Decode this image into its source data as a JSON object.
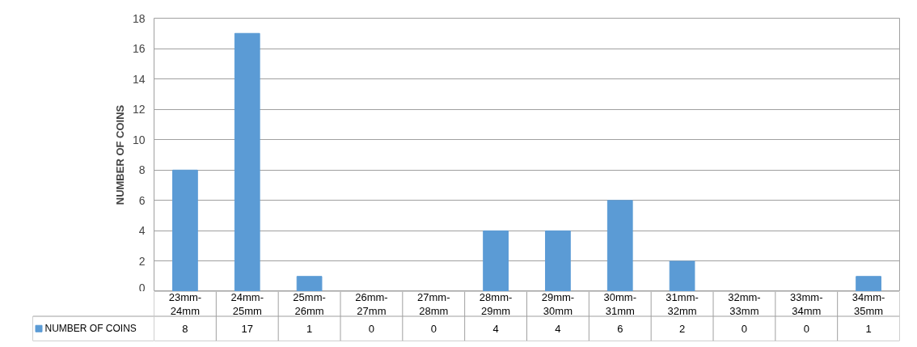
{
  "chart_data": {
    "type": "bar",
    "ylabel": "NUMBER OF COINS",
    "categories": [
      "23mm-24mm",
      "24mm-25mm",
      "25mm-26mm",
      "26mm-27mm",
      "27mm-28mm",
      "28mm-29mm",
      "29mm-30mm",
      "30mm-31mm",
      "31mm-32mm",
      "32mm-33mm",
      "33mm-34mm",
      "34mm-35mm"
    ],
    "series": [
      {
        "name": "NUMBER OF COINS",
        "color": "#5b9bd5",
        "values": [
          8,
          17,
          1,
          0,
          0,
          4,
          4,
          6,
          2,
          0,
          0,
          1
        ]
      }
    ],
    "ylim": [
      0,
      18
    ],
    "yticks": [
      0,
      2,
      4,
      6,
      8,
      10,
      12,
      14,
      16,
      18
    ],
    "grid": "y",
    "legend": "bottom",
    "data_labels": true
  }
}
